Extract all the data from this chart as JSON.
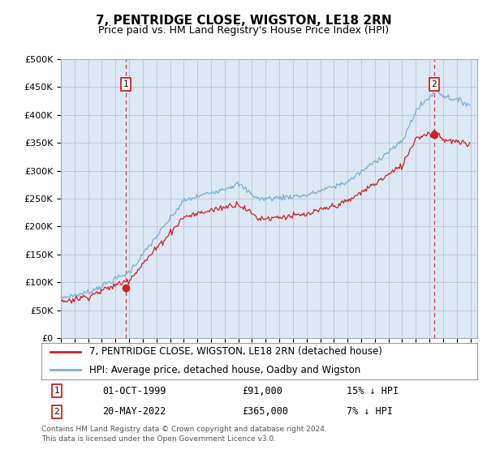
{
  "title": "7, PENTRIDGE CLOSE, WIGSTON, LE18 2RN",
  "subtitle": "Price paid vs. HM Land Registry's House Price Index (HPI)",
  "legend_entry1": "7, PENTRIDGE CLOSE, WIGSTON, LE18 2RN (detached house)",
  "legend_entry2": "HPI: Average price, detached house, Oadby and Wigston",
  "annotation1_label": "1",
  "annotation1_date": "01-OCT-1999",
  "annotation1_price": 91000,
  "annotation1_note": "15% ↓ HPI",
  "annotation2_label": "2",
  "annotation2_date": "20-MAY-2022",
  "annotation2_price": 365000,
  "annotation2_note": "7% ↓ HPI",
  "footer": "Contains HM Land Registry data © Crown copyright and database right 2024.\nThis data is licensed under the Open Government Licence v3.0.",
  "hpi_color": "#7bafd4",
  "price_color": "#cc2222",
  "plot_bg_color": "#dde8f5",
  "ylim": [
    0,
    500000
  ],
  "yticks": [
    0,
    50000,
    100000,
    150000,
    200000,
    250000,
    300000,
    350000,
    400000,
    450000,
    500000
  ],
  "ytick_labels": [
    "£0",
    "£50K",
    "£100K",
    "£150K",
    "£200K",
    "£250K",
    "£300K",
    "£350K",
    "£400K",
    "£450K",
    "£500K"
  ],
  "sale1_x": 1999.75,
  "sale1_y": 91000,
  "sale2_x": 2022.333,
  "sale2_y": 365000,
  "xmin": 1995.0,
  "xmax": 2025.5
}
